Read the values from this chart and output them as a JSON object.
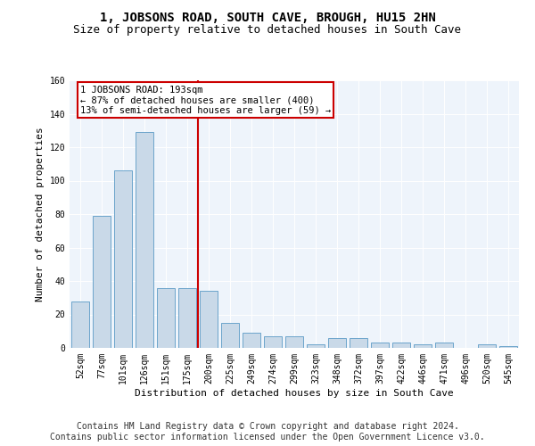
{
  "title": "1, JOBSONS ROAD, SOUTH CAVE, BROUGH, HU15 2HN",
  "subtitle": "Size of property relative to detached houses in South Cave",
  "xlabel": "Distribution of detached houses by size in South Cave",
  "ylabel": "Number of detached properties",
  "categories": [
    "52sqm",
    "77sqm",
    "101sqm",
    "126sqm",
    "151sqm",
    "175sqm",
    "200sqm",
    "225sqm",
    "249sqm",
    "274sqm",
    "299sqm",
    "323sqm",
    "348sqm",
    "372sqm",
    "397sqm",
    "422sqm",
    "446sqm",
    "471sqm",
    "496sqm",
    "520sqm",
    "545sqm"
  ],
  "values": [
    28,
    79,
    106,
    129,
    36,
    36,
    34,
    15,
    9,
    7,
    7,
    2,
    6,
    6,
    3,
    3,
    2,
    3,
    0,
    2,
    1
  ],
  "bar_color": "#c9d9e8",
  "bar_edge_color": "#5a9ac5",
  "vline_color": "#cc0000",
  "annotation_text": "1 JOBSONS ROAD: 193sqm\n← 87% of detached houses are smaller (400)\n13% of semi-detached houses are larger (59) →",
  "annotation_box_color": "#cc0000",
  "bg_color": "#eef4fb",
  "ylim": [
    0,
    160
  ],
  "yticks": [
    0,
    20,
    40,
    60,
    80,
    100,
    120,
    140,
    160
  ],
  "footer_line1": "Contains HM Land Registry data © Crown copyright and database right 2024.",
  "footer_line2": "Contains public sector information licensed under the Open Government Licence v3.0.",
  "title_fontsize": 10,
  "subtitle_fontsize": 9,
  "xlabel_fontsize": 8,
  "ylabel_fontsize": 8,
  "tick_fontsize": 7,
  "footer_fontsize": 7,
  "annotation_fontsize": 7.5
}
